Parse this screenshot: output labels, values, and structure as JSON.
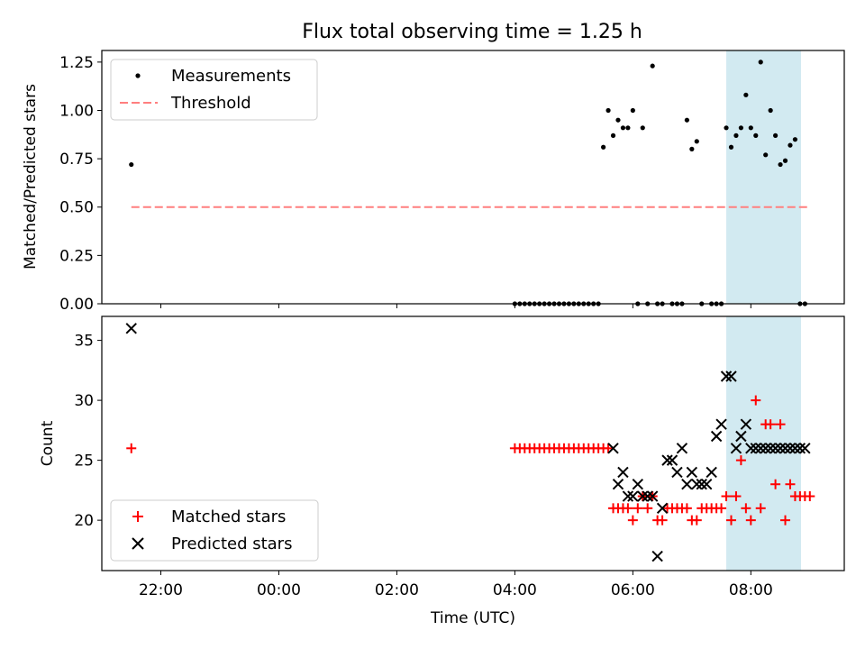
{
  "figure": {
    "title": "Flux total observing time = 1.25 h"
  },
  "chart_data": [
    {
      "type": "scatter",
      "title": "Flux total observing time = 1.25 h",
      "xlabel": "",
      "ylabel": "Matched/Predicted stars",
      "xlim": [
        "21:00",
        "09:35"
      ],
      "ylim": [
        0,
        1.31
      ],
      "x_ticks": [
        "22:00",
        "00:00",
        "02:00",
        "04:00",
        "06:00",
        "08:00"
      ],
      "y_ticks": [
        "0.00",
        "0.25",
        "0.50",
        "0.75",
        "1.00",
        "1.25"
      ],
      "legend": {
        "position": "top-left",
        "entries": [
          "Measurements",
          "Threshold"
        ]
      },
      "highlight_span": {
        "x": [
          "07:35",
          "08:51"
        ],
        "color": "#add8e6"
      },
      "threshold": {
        "name": "Threshold",
        "y": 0.5,
        "x": [
          "21:30",
          "09:00"
        ],
        "color": "#ff7f7f",
        "style": "dashed"
      },
      "series": [
        {
          "name": "Measurements",
          "marker": "dot",
          "color": "#000000",
          "x": [
            "21:30",
            "04:00",
            "04:05",
            "04:10",
            "04:15",
            "04:20",
            "04:25",
            "04:30",
            "04:35",
            "04:40",
            "04:45",
            "04:50",
            "04:55",
            "05:00",
            "05:05",
            "05:10",
            "05:15",
            "05:20",
            "05:25",
            "05:30",
            "05:35",
            "05:40",
            "05:45",
            "05:50",
            "05:55",
            "06:00",
            "06:05",
            "06:10",
            "06:15",
            "06:20",
            "06:25",
            "06:30",
            "06:40",
            "06:45",
            "06:50",
            "06:55",
            "07:00",
            "07:05",
            "07:10",
            "07:20",
            "07:25",
            "07:30",
            "07:35",
            "07:40",
            "07:45",
            "07:50",
            "07:55",
            "08:00",
            "08:05",
            "08:10",
            "08:15",
            "08:20",
            "08:25",
            "08:30",
            "08:35",
            "08:40",
            "08:45",
            "08:50",
            "08:55"
          ],
          "y": [
            0.72,
            0,
            0,
            0,
            0,
            0,
            0,
            0,
            0,
            0,
            0,
            0,
            0,
            0,
            0,
            0,
            0,
            0,
            0,
            0.81,
            1.0,
            0.87,
            0.95,
            0.91,
            0.91,
            1.0,
            0,
            0.91,
            0,
            1.23,
            0,
            0,
            0,
            0,
            0,
            0.95,
            0.8,
            0.84,
            0,
            0,
            0,
            0,
            0.91,
            0.81,
            0.87,
            0.91,
            1.08,
            0.91,
            0.87,
            1.25,
            0.77,
            1.0,
            0.87,
            0.72,
            0.74,
            0.82,
            0.85,
            0,
            0
          ]
        }
      ]
    },
    {
      "type": "scatter",
      "title": "",
      "xlabel": "Time (UTC)",
      "ylabel": "Count",
      "xlim": [
        "21:00",
        "09:35"
      ],
      "ylim": [
        15.8,
        37
      ],
      "x_ticks": [
        "22:00",
        "00:00",
        "02:00",
        "04:00",
        "06:00",
        "08:00"
      ],
      "y_ticks": [
        "20",
        "25",
        "30",
        "35"
      ],
      "legend": {
        "position": "bottom-left",
        "entries": [
          "Matched stars",
          "Predicted stars"
        ]
      },
      "highlight_span": {
        "x": [
          "07:35",
          "08:51"
        ],
        "color": "#add8e6"
      },
      "series": [
        {
          "name": "Matched stars",
          "marker": "plus",
          "color": "#ff0000",
          "x": [
            "21:30",
            "04:00",
            "04:05",
            "04:10",
            "04:15",
            "04:20",
            "04:25",
            "04:30",
            "04:35",
            "04:40",
            "04:45",
            "04:50",
            "04:55",
            "05:00",
            "05:05",
            "05:10",
            "05:15",
            "05:20",
            "05:25",
            "05:30",
            "05:35",
            "05:40",
            "05:45",
            "05:50",
            "05:55",
            "06:00",
            "06:05",
            "06:10",
            "06:15",
            "06:20",
            "06:25",
            "06:30",
            "06:35",
            "06:40",
            "06:45",
            "06:50",
            "06:55",
            "07:00",
            "07:05",
            "07:10",
            "07:15",
            "07:20",
            "07:25",
            "07:30",
            "07:35",
            "07:40",
            "07:45",
            "07:50",
            "07:55",
            "08:00",
            "08:05",
            "08:10",
            "08:15",
            "08:20",
            "08:25",
            "08:30",
            "08:35",
            "08:40",
            "08:45",
            "08:50",
            "08:55",
            "09:00"
          ],
          "y": [
            26,
            26,
            26,
            26,
            26,
            26,
            26,
            26,
            26,
            26,
            26,
            26,
            26,
            26,
            26,
            26,
            26,
            26,
            26,
            26,
            26,
            21,
            21,
            21,
            21,
            20,
            21,
            22,
            21,
            22,
            20,
            20,
            21,
            21,
            21,
            21,
            21,
            20,
            20,
            21,
            21,
            21,
            21,
            21,
            22,
            20,
            22,
            25,
            21,
            20,
            30,
            21,
            28,
            28,
            23,
            28,
            20,
            23,
            22,
            22,
            22,
            22
          ]
        },
        {
          "name": "Predicted stars",
          "marker": "x",
          "color": "#000000",
          "x": [
            "21:30",
            "05:40",
            "05:45",
            "05:50",
            "05:55",
            "06:00",
            "06:05",
            "06:10",
            "06:15",
            "06:20",
            "06:25",
            "06:30",
            "06:35",
            "06:40",
            "06:45",
            "06:50",
            "06:55",
            "07:00",
            "07:05",
            "07:10",
            "07:15",
            "07:20",
            "07:25",
            "07:30",
            "07:35",
            "07:40",
            "07:45",
            "07:50",
            "07:55",
            "08:00",
            "08:05",
            "08:10",
            "08:15",
            "08:20",
            "08:25",
            "08:30",
            "08:35",
            "08:40",
            "08:45",
            "08:50",
            "08:55"
          ],
          "y": [
            36,
            26,
            23,
            24,
            22,
            22,
            23,
            22,
            22,
            22,
            17,
            21,
            25,
            25,
            24,
            26,
            23,
            24,
            23,
            23,
            23,
            24,
            27,
            28,
            32,
            32,
            26,
            27,
            28,
            26,
            26,
            26,
            26,
            26,
            26,
            26,
            26,
            26,
            26,
            26,
            26
          ]
        }
      ]
    }
  ]
}
